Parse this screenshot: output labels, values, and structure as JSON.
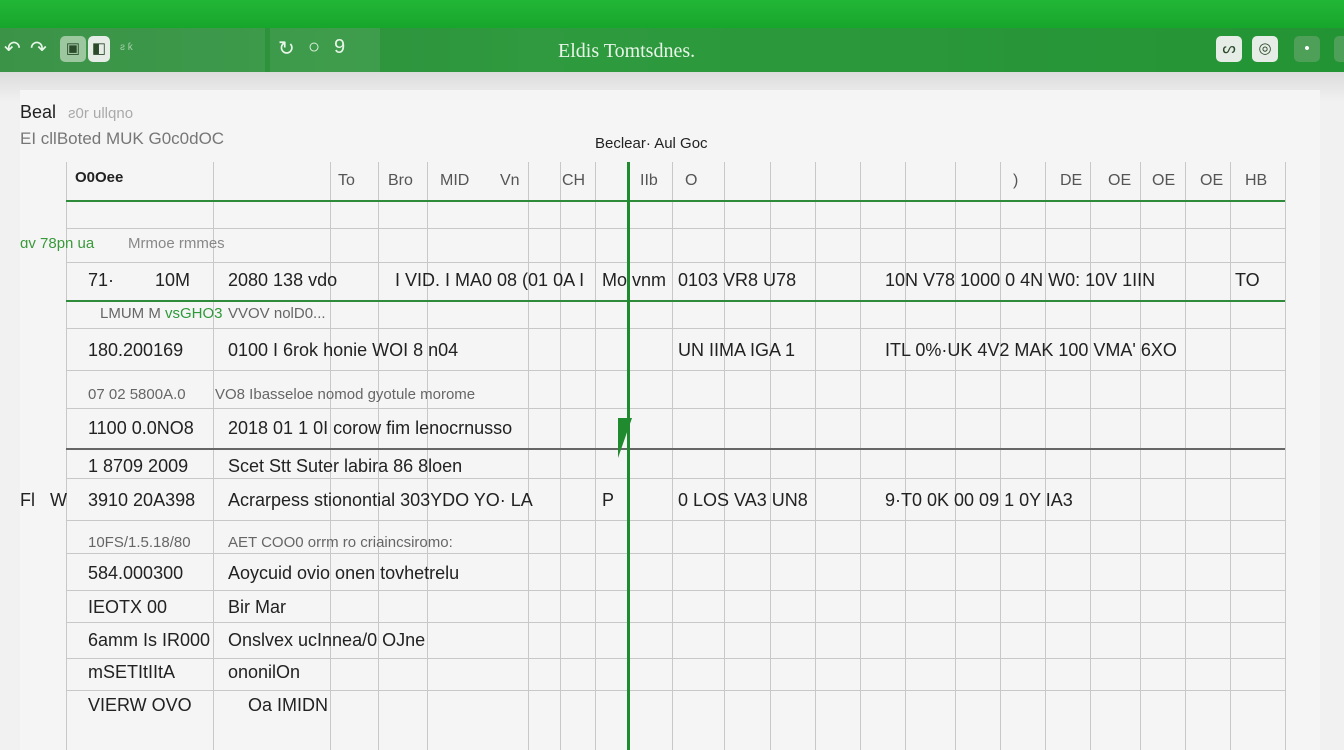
{
  "window": {
    "title": "Eldis Tomtsdnes.",
    "toolbar_left_text": "ƨ ƙ",
    "toolbar_icons": [
      "undo-icon",
      "redo-icon",
      "save-icon",
      "print-icon",
      "refresh-icon",
      "search-icon"
    ],
    "right_buttons": [
      "ribbon-icon",
      "share-icon",
      "minimize-icon"
    ]
  },
  "header": {
    "line1": "Beal",
    "line1_sub": "ƨ0r ullqno",
    "line2": "EI  cllBoted MUK G0c0dOC",
    "right_label": "Beclear· Aul Goc"
  },
  "columns": {
    "first": "O0Oee",
    "labels": [
      "To",
      "Bro",
      "MID",
      "Vn",
      "CH",
      "IIb",
      "O",
      ")",
      "DE",
      "OE",
      "OE",
      "OE",
      "HB"
    ]
  },
  "section_label": {
    "green": "ɑv 78pn ua",
    "rest": "Mrmoe rmmes"
  },
  "rows": [
    {
      "a": "71·",
      "b": "10M",
      "c": "2080 138 vdo",
      "d": "I VID. I MA0 08 (01 0A I",
      "e": "Mo vnm",
      "f": "0103  VR8  U78",
      "g": "10N  V78  1000 0 4N  W0:  10V  1IIN",
      "h": "TO"
    },
    {
      "a": "LMUM M",
      "c_green": "vsGHO3",
      "c": "VVOV nolD0..."
    },
    {
      "a": "180.200169",
      "c": "0100 I 6rok honie WOI 8 n04",
      "f": "UN  IIMA  IGA  1",
      "g": "ITL  0%·UK  4V2  MAK  100  VMA'  6XO"
    },
    {
      "a": "07 02 5800A.0",
      "c": "VO8 Ibasseloe nomod gyotule morome"
    },
    {
      "a": "1100 0.0NO8",
      "c": "2018 01 1 0I corow fim lenocrnusso"
    },
    {
      "a": "1 8709 2009",
      "c": "Scet Stt Suter labira 86 8loen"
    },
    {
      "a": "3910 20A398",
      "c": "Acrarpess stionontial 303YDO YO·  LA",
      "e": "P",
      "f": "0 LOS  VA3  UN8",
      "g": "9·T0   0K    00    09   1 0Y   IA3",
      "side1": "Fl",
      "side2": "W"
    },
    {
      "a": "10FS/1.5.18/80",
      "c": "AET COO0 orrm ro  criaincsiromo:"
    },
    {
      "a": "584.000300",
      "c": "Aoycuid ovio onen tovhetrelu"
    },
    {
      "a": "IEOTX  00",
      "c": "Bir Mar"
    },
    {
      "a": "6amm Is IR000",
      "c": "Onslvex ucInnea/0 OJne"
    },
    {
      "a": "mSETItIItA",
      "c": "ononilOn"
    },
    {
      "a": "VIERW  OVO",
      "c": "Oa IMIDN"
    }
  ],
  "colors": {
    "accent": "#1aa82e",
    "toolbar": "#2b8a38",
    "grid": "#c8c8c8",
    "highlight_line": "#2e8b3a"
  }
}
